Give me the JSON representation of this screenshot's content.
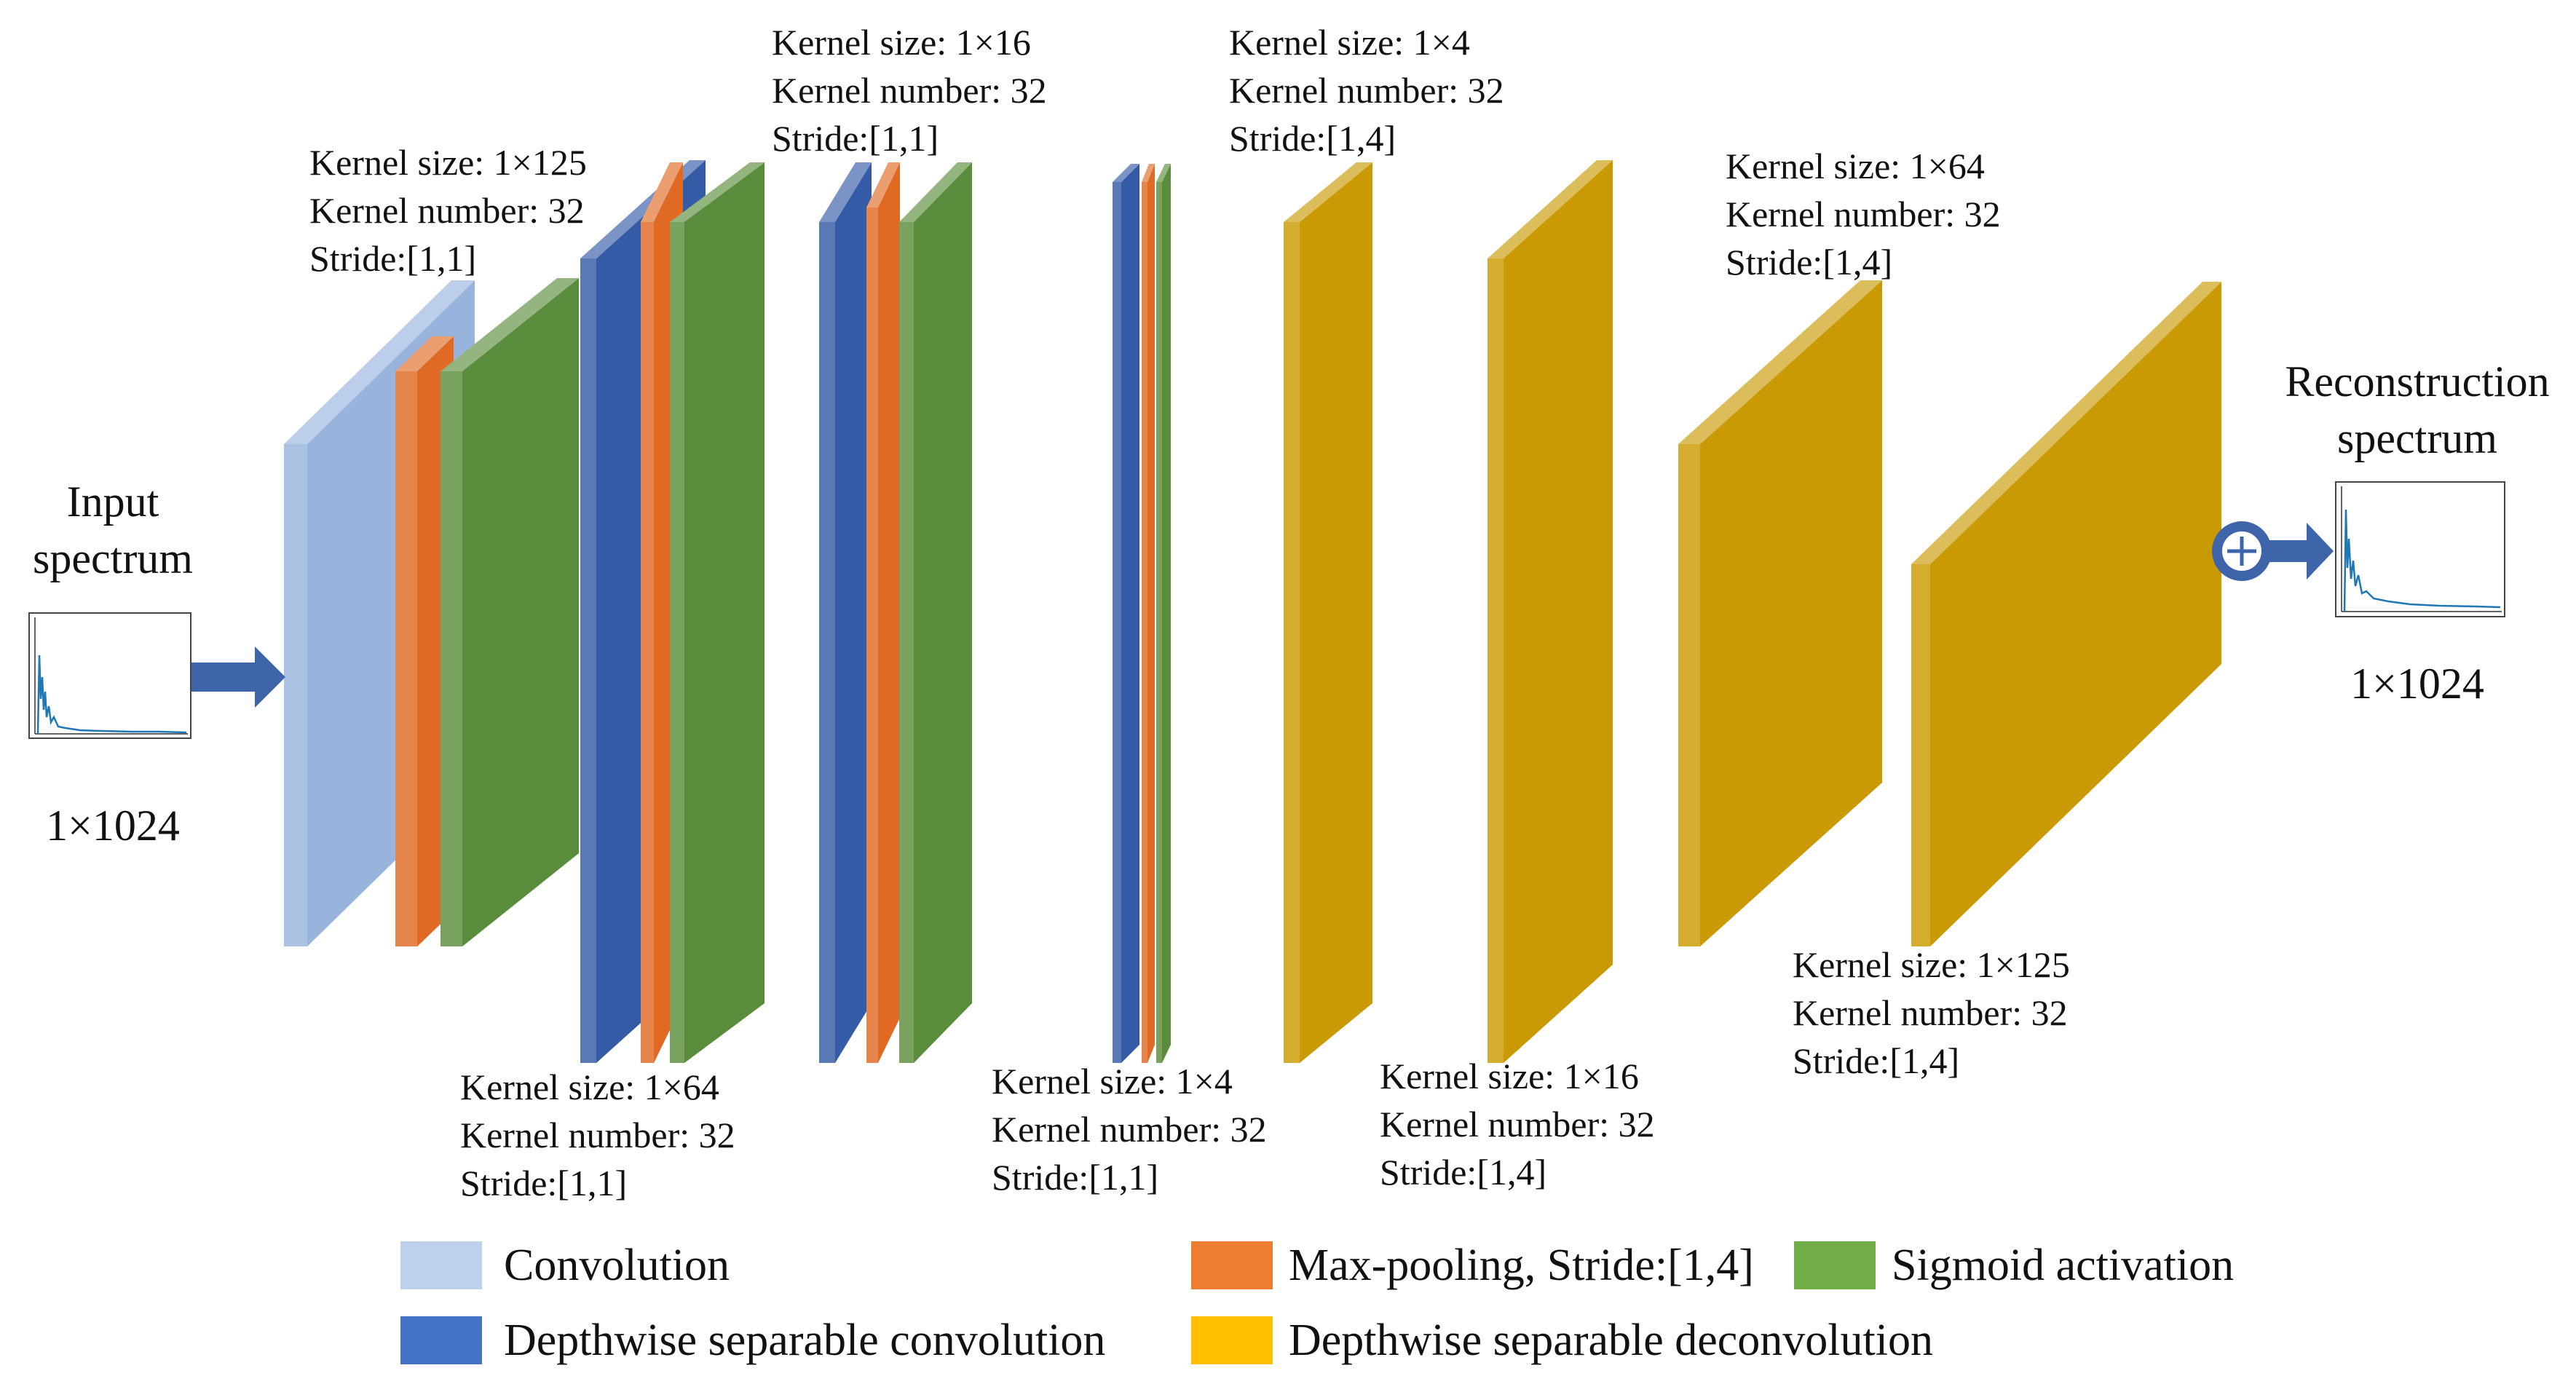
{
  "input": {
    "title_line1": "Input",
    "title_line2": "spectrum",
    "size": "1×1024"
  },
  "output": {
    "title_line1": "Reconstruction",
    "title_line2": "spectrum",
    "size": "1×1024"
  },
  "layers": {
    "enc1": {
      "l1": "Kernel size: 1×125",
      "l2": "Kernel number: 32",
      "l3": "Stride:[1,1]"
    },
    "enc2": {
      "l1": "Kernel size: 1×64",
      "l2": "Kernel number: 32",
      "l3": "Stride:[1,1]"
    },
    "enc3": {
      "l1": "Kernel size: 1×16",
      "l2": "Kernel number: 32",
      "l3": "Stride:[1,1]"
    },
    "enc4": {
      "l1": "Kernel size: 1×4",
      "l2": "Kernel number: 32",
      "l3": "Stride:[1,1]"
    },
    "dec1": {
      "l1": "Kernel size: 1×4",
      "l2": "Kernel number: 32",
      "l3": "Stride:[1,4]"
    },
    "dec2": {
      "l1": "Kernel size: 1×16",
      "l2": "Kernel number: 32",
      "l3": "Stride:[1,4]"
    },
    "dec3": {
      "l1": "Kernel size: 1×64",
      "l2": "Kernel number: 32",
      "l3": "Stride:[1,4]"
    },
    "dec4": {
      "l1": "Kernel size: 1×125",
      "l2": "Kernel number: 32",
      "l3": "Stride:[1,4]"
    }
  },
  "legend": {
    "convolution": "Convolution",
    "maxpool": "Max-pooling, Stride:[1,4]",
    "sigmoid": "Sigmoid activation",
    "dsconv": "Depthwise separable convolution",
    "dsdeconv": "Depthwise separable deconvolution"
  },
  "colors": {
    "convolution": "#98b4dd",
    "dsconv": "#345ba5",
    "maxpool": "#e06a23",
    "sigmoid": "#5a8d3b",
    "dsdeconv": "#c99a03",
    "arrow": "#3e65a9"
  }
}
